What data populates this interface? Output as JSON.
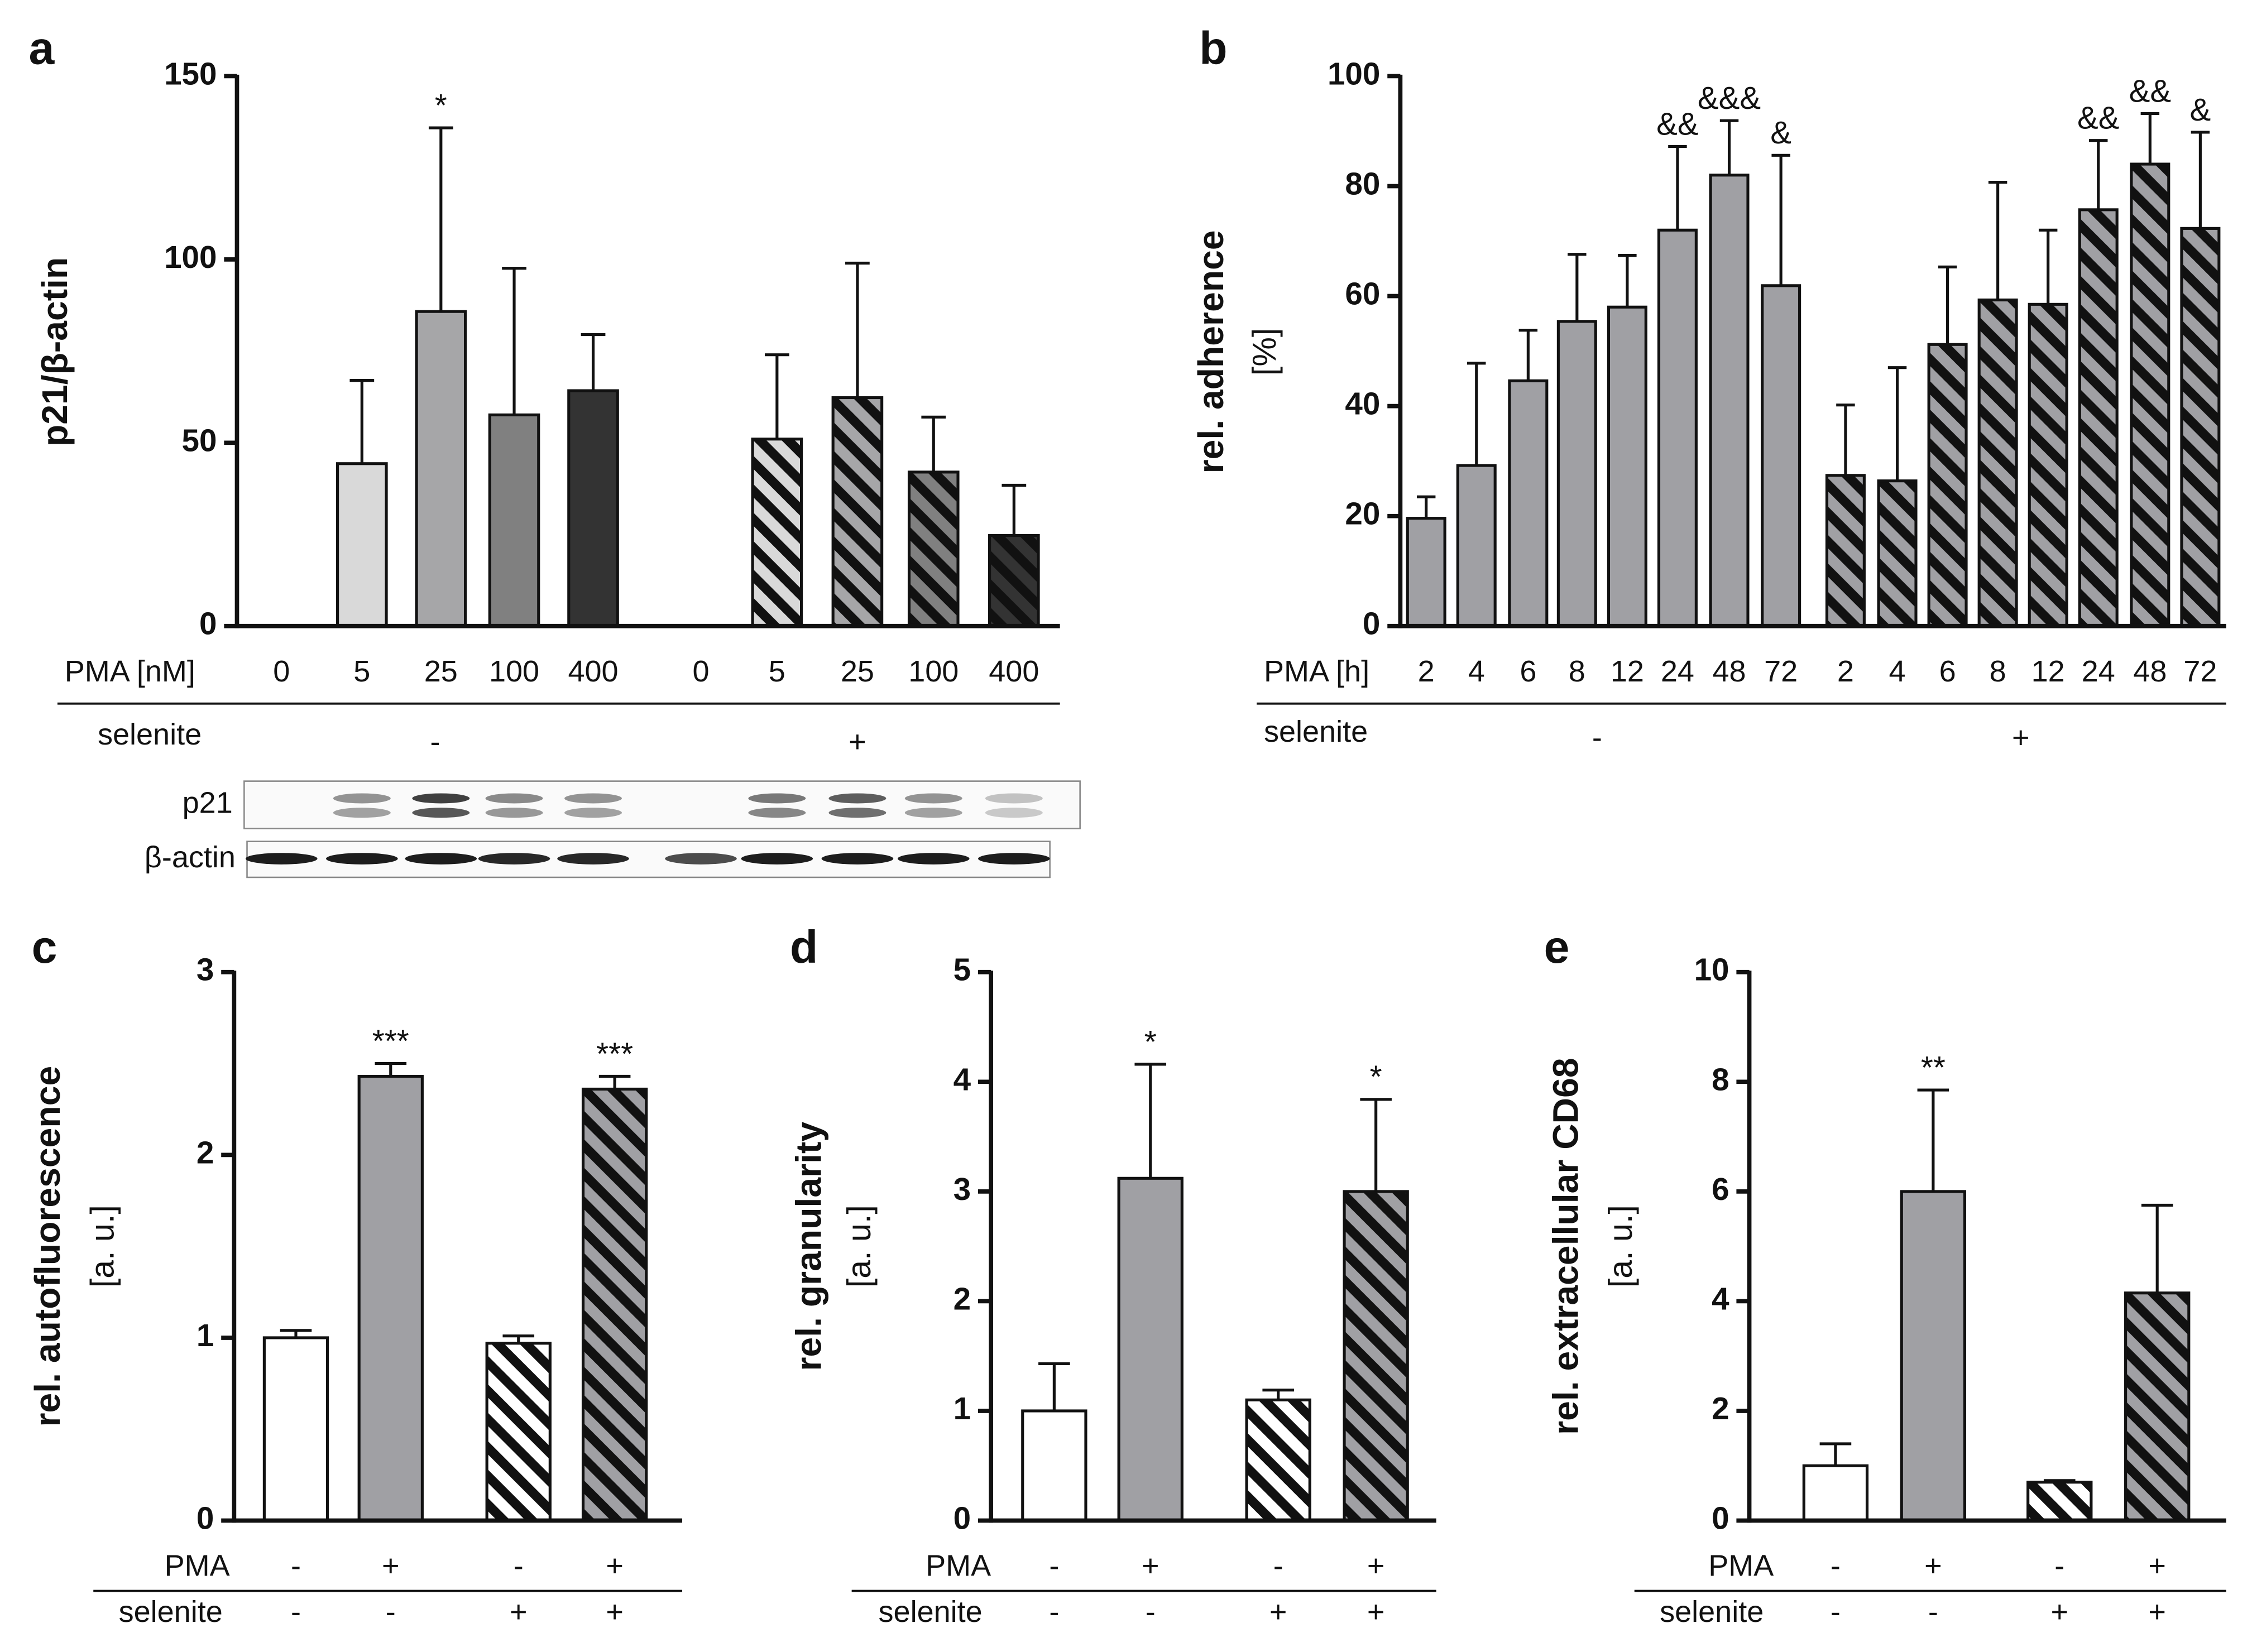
{
  "chart_data": [
    {
      "type": "bar",
      "label": "a",
      "y_label": [
        "p21/β-actin"
      ],
      "ylim": [
        0,
        150
      ],
      "yticks": [
        0,
        50,
        100,
        150
      ],
      "x_label": "PMA [nM]",
      "categories": [
        "0",
        "5",
        "25",
        "100",
        "400",
        "0",
        "5",
        "25",
        "100",
        "400"
      ],
      "values": [
        0,
        44.3,
        85.8,
        57.6,
        64.2,
        0,
        51,
        62.3,
        42,
        24.7
      ],
      "errors": [
        null,
        22.7,
        50.1,
        40,
        15.3,
        null,
        23,
        36.7,
        15,
        13.7
      ],
      "annotations": [
        null,
        null,
        "*",
        null,
        null,
        null,
        null,
        null,
        null,
        null
      ],
      "colors": [
        "#ffffff",
        "#d9d9d9",
        "#a6a6a8",
        "#808080",
        "#333333",
        "#ffffff",
        "#d9d9d9",
        "#a6a6a8",
        "#808080",
        "#333333"
      ],
      "hatch": [
        false,
        false,
        false,
        false,
        false,
        true,
        true,
        true,
        true,
        true
      ],
      "group_label": "selenite",
      "groups": [
        "-",
        "+"
      ],
      "blot_labels": [
        "p21",
        "β-actin"
      ]
    },
    {
      "type": "bar",
      "label": "b",
      "y_label": [
        "rel. adherence",
        "[%]"
      ],
      "ylim": [
        0,
        100
      ],
      "yticks": [
        0,
        20,
        40,
        60,
        80,
        100
      ],
      "x_label": "PMA [h]",
      "categories": [
        "2",
        "4",
        "6",
        "8",
        "12",
        "24",
        "48",
        "72",
        "2",
        "4",
        "6",
        "8",
        "12",
        "24",
        "48",
        "72"
      ],
      "values": [
        19.6,
        29.2,
        44.6,
        55.4,
        58,
        72,
        82,
        61.9,
        27.4,
        26.4,
        51.2,
        59.3,
        58.5,
        75.7,
        84,
        72.3
      ],
      "errors": [
        3.9,
        18.6,
        9.2,
        12.2,
        9.4,
        15.2,
        9.9,
        23.7,
        12.8,
        20.6,
        14.1,
        21.4,
        13.5,
        12.6,
        9.2,
        17.5
      ],
      "annotations": [
        null,
        null,
        null,
        null,
        null,
        "&&",
        "&&&",
        "&",
        null,
        null,
        null,
        null,
        null,
        "&&",
        "&&",
        "&"
      ],
      "colors": [
        "#a0a0a4",
        "#a0a0a4",
        "#a0a0a4",
        "#a0a0a4",
        "#a0a0a4",
        "#a0a0a4",
        "#a0a0a4",
        "#a0a0a4",
        "#a0a0a4",
        "#a0a0a4",
        "#a0a0a4",
        "#a0a0a4",
        "#a0a0a4",
        "#a0a0a4",
        "#a0a0a4",
        "#a0a0a4"
      ],
      "hatch": [
        false,
        false,
        false,
        false,
        false,
        false,
        false,
        false,
        true,
        true,
        true,
        true,
        true,
        true,
        true,
        true
      ],
      "group_label": "selenite",
      "groups": [
        "-",
        "+"
      ]
    },
    {
      "type": "bar",
      "label": "c",
      "y_label": [
        "rel. autofluorescence",
        "[a. u.]"
      ],
      "ylim": [
        0,
        3
      ],
      "yticks": [
        0,
        1,
        2,
        3
      ],
      "values": [
        1.0,
        2.43,
        0.97,
        2.36
      ],
      "errors": [
        0.04,
        0.07,
        0.04,
        0.07
      ],
      "annotations": [
        null,
        "***",
        null,
        "***"
      ],
      "colors": [
        "#ffffff",
        "#a0a0a4",
        "#ffffff",
        "#a0a0a4"
      ],
      "hatch": [
        false,
        false,
        true,
        true
      ],
      "rows": [
        {
          "label": "PMA",
          "values": [
            "-",
            "+",
            "-",
            "+"
          ]
        },
        {
          "label": "selenite",
          "values": [
            "-",
            "-",
            "+",
            "+"
          ]
        }
      ]
    },
    {
      "type": "bar",
      "label": "d",
      "y_label": [
        "rel. granularity",
        "[a. u.]"
      ],
      "ylim": [
        0,
        5
      ],
      "yticks": [
        0,
        1,
        2,
        3,
        4,
        5
      ],
      "values": [
        1.0,
        3.12,
        1.1,
        3.0
      ],
      "errors": [
        0.43,
        1.04,
        0.09,
        0.84
      ],
      "annotations": [
        null,
        "*",
        null,
        "*"
      ],
      "colors": [
        "#ffffff",
        "#a0a0a4",
        "#ffffff",
        "#a0a0a4"
      ],
      "hatch": [
        false,
        false,
        true,
        true
      ],
      "rows": [
        {
          "label": "PMA",
          "values": [
            "-",
            "+",
            "-",
            "+"
          ]
        },
        {
          "label": "selenite",
          "values": [
            "-",
            "-",
            "+",
            "+"
          ]
        }
      ]
    },
    {
      "type": "bar",
      "label": "e",
      "y_label": [
        "rel. extracellular CD68",
        "[a. u.]"
      ],
      "ylim": [
        0,
        10
      ],
      "yticks": [
        0,
        2,
        4,
        6,
        8,
        10
      ],
      "values": [
        1.0,
        6.0,
        0.7,
        4.15
      ],
      "errors": [
        0.4,
        1.85,
        0.03,
        1.6
      ],
      "annotations": [
        null,
        "**",
        null,
        null
      ],
      "colors": [
        "#ffffff",
        "#a0a0a4",
        "#ffffff",
        "#a0a0a4"
      ],
      "hatch": [
        false,
        false,
        true,
        true
      ],
      "rows": [
        {
          "label": "PMA",
          "values": [
            "-",
            "+",
            "-",
            "+"
          ]
        },
        {
          "label": "selenite",
          "values": [
            "-",
            "-",
            "+",
            "+"
          ]
        }
      ]
    }
  ]
}
